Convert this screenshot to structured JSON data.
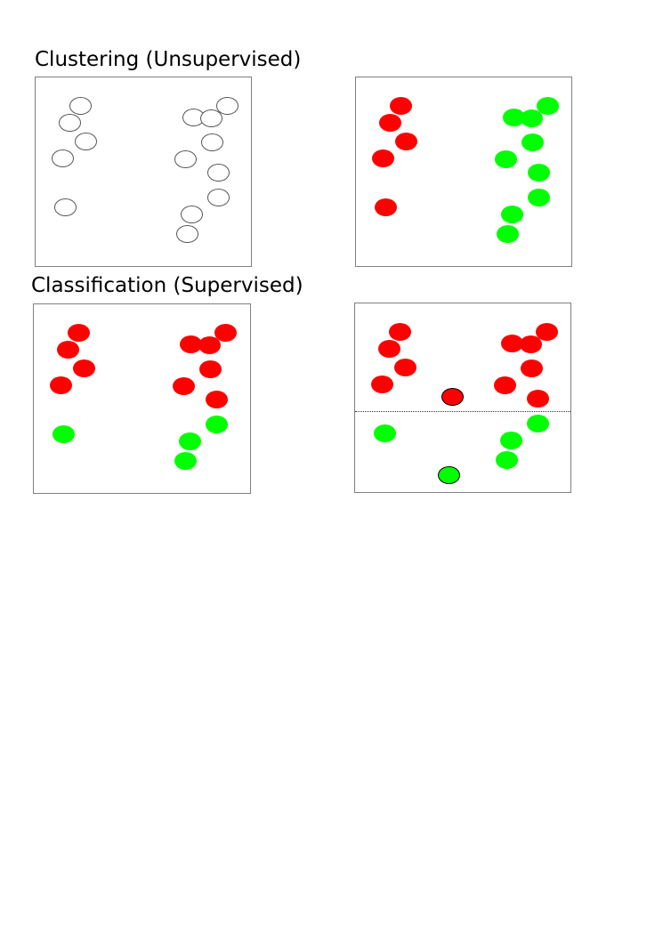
{
  "headings": {
    "clustering": "Clustering (Unsupervised)",
    "classification": "Classification (Supervised)"
  },
  "colors": {
    "red": "#ff0000",
    "green": "#00ff00",
    "unlabeled_fill": "#ffffff"
  },
  "panels": [
    {
      "id": "panel-1",
      "label_colors": [
        "none",
        "none",
        "none",
        "none",
        "none",
        "none",
        "none",
        "none",
        "none",
        "none",
        "none",
        "none",
        "none",
        "none"
      ],
      "has_boundary": false
    },
    {
      "id": "panel-2",
      "label_colors": [
        "red",
        "red",
        "red",
        "red",
        "red",
        "green",
        "green",
        "green",
        "green",
        "green",
        "green",
        "green",
        "green",
        "green"
      ],
      "has_boundary": false
    },
    {
      "id": "panel-3",
      "label_colors": [
        "red",
        "red",
        "red",
        "red",
        "green",
        "red",
        "red",
        "red",
        "red",
        "red",
        "red",
        "green",
        "green",
        "green"
      ],
      "has_boundary": false
    },
    {
      "id": "panel-4",
      "label_colors": [
        "red",
        "red",
        "red",
        "red",
        "green",
        "red",
        "red",
        "red",
        "red",
        "red",
        "red",
        "green",
        "green",
        "green"
      ],
      "has_boundary": true,
      "query_points": [
        "red",
        "green"
      ]
    }
  ]
}
